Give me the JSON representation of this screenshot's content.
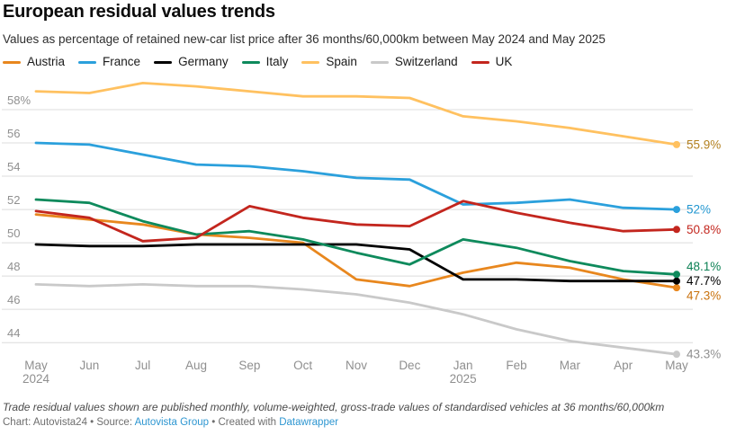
{
  "header": {
    "title": "European residual values trends",
    "subtitle": "Values as percentage of retained new-car list price after 36 months/60,000km between May 2024 and May 2025"
  },
  "chart_data": {
    "type": "line",
    "x_tick_lines": [
      [
        "May",
        "2024"
      ],
      [
        "Jun"
      ],
      [
        "Jul"
      ],
      [
        "Aug"
      ],
      [
        "Sep"
      ],
      [
        "Oct"
      ],
      [
        "Nov"
      ],
      [
        "Dec"
      ],
      [
        "Jan",
        "2025"
      ],
      [
        "Feb"
      ],
      [
        "Mar"
      ],
      [
        "Apr"
      ],
      [
        "May"
      ]
    ],
    "y_ticks": [
      {
        "value": 58,
        "label": "58%"
      },
      {
        "value": 56,
        "label": "56"
      },
      {
        "value": 54,
        "label": "54"
      },
      {
        "value": 52,
        "label": "52"
      },
      {
        "value": 50,
        "label": "50"
      },
      {
        "value": 48,
        "label": "48"
      },
      {
        "value": 46,
        "label": "46"
      },
      {
        "value": 44,
        "label": "44"
      }
    ],
    "ylim": [
      43.3,
      59.6
    ],
    "grid": true,
    "legend_position": "top",
    "series": [
      {
        "name": "Austria",
        "color": "#E8871E",
        "label_color": "#C9720D",
        "end_label": "47.3%",
        "values": [
          51.7,
          51.4,
          51.1,
          50.5,
          50.3,
          50.0,
          47.8,
          47.4,
          48.2,
          48.8,
          48.5,
          47.8,
          47.3
        ]
      },
      {
        "name": "France",
        "color": "#2BA0DC",
        "label_color": "#2196D0",
        "end_label": "52%",
        "values": [
          56.0,
          55.9,
          55.3,
          54.7,
          54.6,
          54.3,
          53.9,
          53.8,
          52.3,
          52.4,
          52.6,
          52.1,
          52.0
        ]
      },
      {
        "name": "Germany",
        "color": "#000000",
        "label_color": "#000000",
        "end_label": "47.7%",
        "values": [
          49.9,
          49.8,
          49.8,
          49.9,
          49.9,
          49.9,
          49.9,
          49.6,
          47.8,
          47.8,
          47.7,
          47.7,
          47.7
        ]
      },
      {
        "name": "Italy",
        "color": "#0E8A5C",
        "label_color": "#0C8054",
        "end_label": "48.1%",
        "values": [
          52.6,
          52.4,
          51.3,
          50.5,
          50.7,
          50.2,
          49.4,
          48.7,
          50.2,
          49.7,
          48.9,
          48.3,
          48.1
        ]
      },
      {
        "name": "Spain",
        "color": "#FFC160",
        "label_color": "#B3801F",
        "end_label": "55.9%",
        "values": [
          59.1,
          59.0,
          59.6,
          59.4,
          59.1,
          58.8,
          58.8,
          58.7,
          57.6,
          57.3,
          56.9,
          56.4,
          55.9
        ]
      },
      {
        "name": "Switzerland",
        "color": "#C9C9C9",
        "label_color": "#8F8F8F",
        "end_label": "43.3%",
        "values": [
          47.5,
          47.4,
          47.5,
          47.4,
          47.4,
          47.2,
          46.9,
          46.4,
          45.7,
          44.8,
          44.1,
          43.7,
          43.3
        ]
      },
      {
        "name": "UK",
        "color": "#C3261E",
        "label_color": "#C3261E",
        "end_label": "50.8%",
        "values": [
          51.9,
          51.5,
          50.1,
          50.3,
          52.2,
          51.5,
          51.1,
          51.0,
          52.5,
          51.8,
          51.2,
          50.7,
          50.8
        ]
      }
    ]
  },
  "footer": {
    "note": "Trade residual values shown are published monthly, volume-weighted, gross-trade values of standardised vehicles at 36 months/60,000km",
    "credit_prefix": "Chart: Autovista24 • Source: ",
    "source_link": "Autovista Group",
    "credit_middle": " • Created with ",
    "tool_link": "Datawrapper"
  }
}
